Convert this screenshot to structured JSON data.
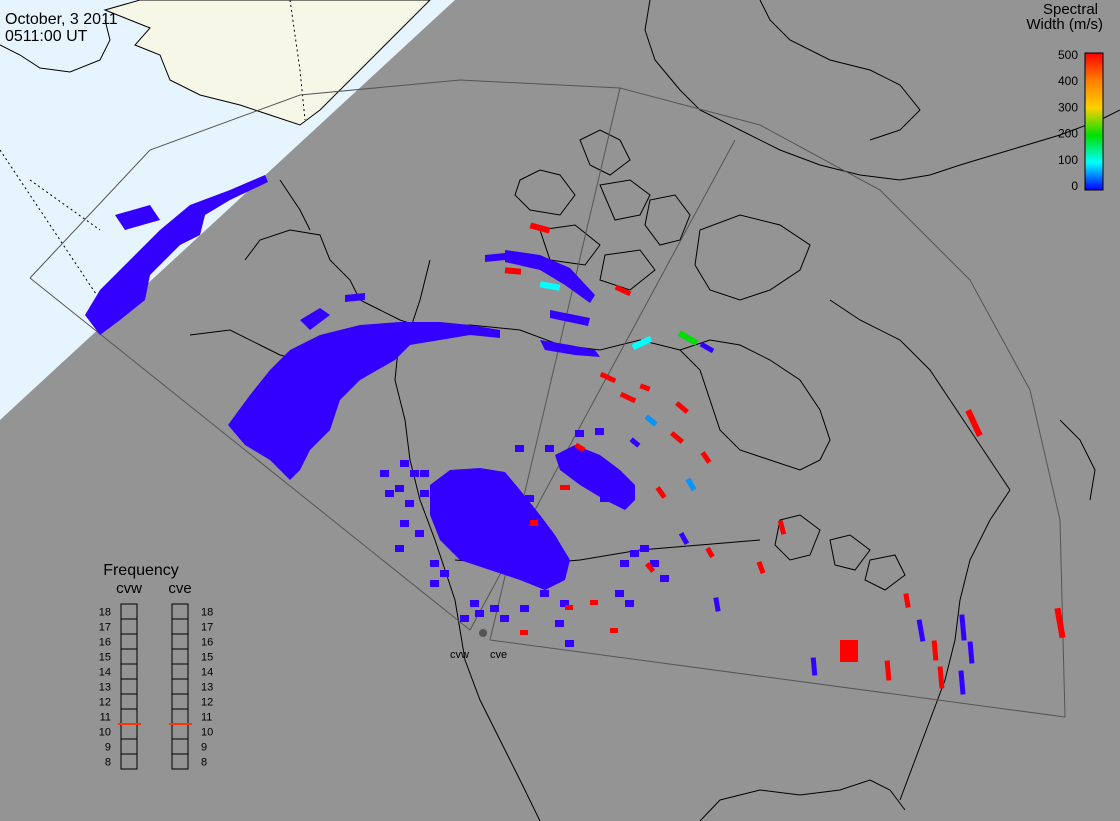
{
  "header": {
    "date": "October, 3 2011",
    "time": "0511:00 UT"
  },
  "colorbar": {
    "title_line1": "Spectral",
    "title_line2": "Width (m/s)",
    "ticks": [
      "500",
      "400",
      "300",
      "200",
      "100",
      "0"
    ],
    "colors": [
      "#ff0000",
      "#ff7f00",
      "#ffd000",
      "#00e000",
      "#00ffff",
      "#0000ff"
    ]
  },
  "frequency_panel": {
    "title": "Frequency",
    "left_label": "cvw",
    "right_label": "cve",
    "ticks": [
      "18",
      "17",
      "16",
      "15",
      "14",
      "13",
      "12",
      "11",
      "10",
      "9",
      "8"
    ],
    "cvw_value": 10.5,
    "cve_value": 10.5,
    "marker_color": "#ff3300"
  },
  "radars": {
    "cvw": "cvw",
    "cve": "cve"
  },
  "colors": {
    "night_sky": "#949494",
    "day_ocean": "#e6f4fd",
    "day_land": "#f7f7e8",
    "scatter_blue": "#3300ff",
    "scatter_red": "#ff0000",
    "scatter_cyan": "#00ffff",
    "scatter_green": "#00dd00",
    "scatter_sky": "#0099ff"
  }
}
